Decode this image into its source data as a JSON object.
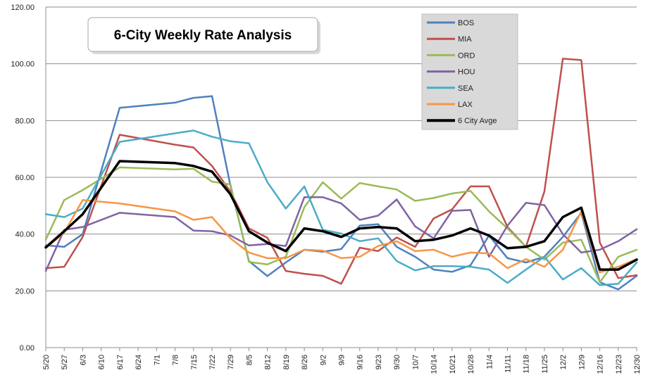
{
  "chart_data": {
    "type": "line",
    "title": "6-City Weekly Rate Analysis",
    "xlabel": "",
    "ylabel": "",
    "ylim": [
      0,
      120
    ],
    "yticks": [
      "0.00",
      "20.00",
      "40.00",
      "60.00",
      "80.00",
      "100.00",
      "120.00"
    ],
    "grid": true,
    "legend_position": "top-right",
    "categories": [
      "5/20",
      "5/27",
      "6/3",
      "6/10",
      "6/17",
      "6/24",
      "7/1",
      "7/8",
      "7/15",
      "7/22",
      "7/29",
      "8/5",
      "8/12",
      "8/19",
      "8/26",
      "9/2",
      "9/9",
      "9/16",
      "9/23",
      "9/30",
      "10/7",
      "10/14",
      "10/21",
      "10/28",
      "11/4",
      "11/11",
      "11/18",
      "11/25",
      "12/2",
      "12/9",
      "12/16",
      "12/23",
      "12/30"
    ],
    "series": [
      {
        "name": "BOS",
        "color": "#4F81BD",
        "width": 2.5,
        "values": [
          36,
          35.5,
          40,
          null,
          84.5,
          null,
          null,
          86.3,
          88,
          88.6,
          57,
          30.5,
          25.2,
          30,
          34.5,
          33.8,
          34.7,
          43,
          43.5,
          35.5,
          32,
          27.5,
          26.7,
          29,
          39.5,
          31.5,
          30,
          32,
          39,
          47.5,
          23,
          20.5,
          25.3
        ]
      },
      {
        "name": "MIA",
        "color": "#C0504D",
        "width": 2.5,
        "values": [
          28,
          28.5,
          39,
          null,
          75,
          null,
          null,
          71.5,
          70.5,
          64,
          55,
          42,
          38.7,
          27,
          26,
          25.3,
          22.5,
          35.2,
          34,
          38.8,
          35.5,
          45.5,
          48.7,
          56.8,
          56.8,
          42.5,
          35.5,
          55,
          101.8,
          101.3,
          37,
          24.5,
          25.5
        ]
      },
      {
        "name": "ORD",
        "color": "#9BBB59",
        "width": 2.5,
        "values": [
          38,
          52,
          55.5,
          null,
          63.5,
          null,
          null,
          62.8,
          63,
          58.5,
          57.5,
          30.2,
          29.3,
          32,
          49.5,
          58.3,
          52.5,
          58,
          56.8,
          55.7,
          51.7,
          52.7,
          54.3,
          55.2,
          48,
          42,
          35.5,
          31,
          37,
          38,
          23,
          32,
          34.5
        ]
      },
      {
        "name": "HOU",
        "color": "#8064A2",
        "width": 2.5,
        "values": [
          27,
          41.5,
          42.5,
          null,
          47.5,
          null,
          null,
          46,
          41.2,
          41,
          39.5,
          36,
          36.5,
          35.8,
          53,
          53,
          50.8,
          45,
          46.5,
          52.2,
          42.7,
          38.5,
          48.2,
          48.5,
          32,
          43,
          51,
          50.2,
          40,
          33.5,
          34.5,
          37.5,
          41.7
        ]
      },
      {
        "name": "SEA",
        "color": "#4BACC6",
        "width": 2.5,
        "values": [
          47,
          46,
          49,
          null,
          72.5,
          null,
          null,
          75.5,
          76.5,
          74.3,
          72.7,
          72,
          58.3,
          49,
          56.8,
          41.5,
          40.2,
          37.5,
          38.5,
          30.5,
          27.2,
          28.7,
          28.7,
          28.5,
          27.5,
          22.8,
          27.5,
          32,
          24,
          28,
          22,
          22.5,
          30
        ]
      },
      {
        "name": "LAX",
        "color": "#F79646",
        "width": 2.5,
        "values": [
          35,
          40.5,
          52,
          null,
          50.8,
          null,
          null,
          48,
          45,
          46,
          38.5,
          33.5,
          31.5,
          31.5,
          34.5,
          34.2,
          31.5,
          32,
          35.8,
          37.5,
          34,
          34.5,
          32,
          33.5,
          33.2,
          28,
          31.2,
          28.5,
          34.5,
          48,
          26.5,
          28.5,
          31.2
        ]
      },
      {
        "name": "6 City Avge",
        "color": "#000000",
        "width": 3.5,
        "values": [
          35.3,
          41,
          47,
          null,
          65.7,
          null,
          null,
          65,
          64,
          62,
          54,
          41,
          37,
          34,
          42,
          41,
          39,
          42,
          42.5,
          42,
          37.5,
          38,
          39.5,
          42,
          39.5,
          35,
          35.5,
          37.5,
          46,
          49.3,
          27.5,
          27.5,
          31
        ]
      }
    ]
  }
}
